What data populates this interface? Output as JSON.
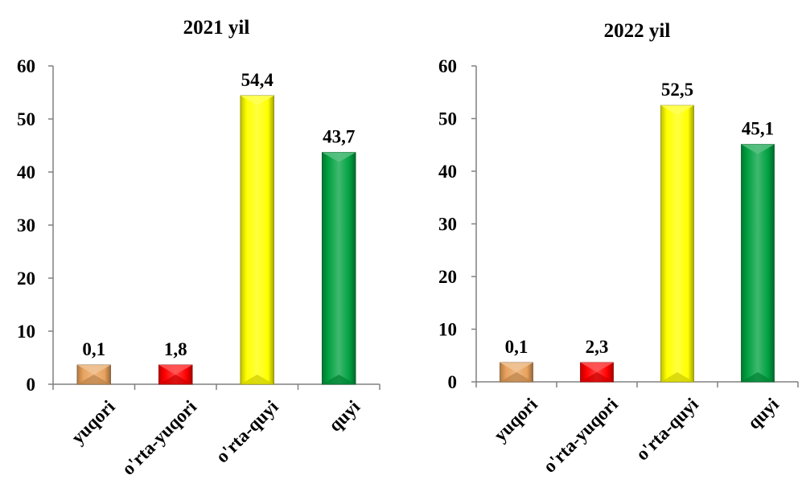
{
  "chart_data": [
    {
      "type": "bar",
      "title": "2021 yil",
      "xlabel": "",
      "ylabel": "",
      "ylim": [
        0,
        60
      ],
      "yticks": [
        "0",
        "10",
        "20",
        "30",
        "40",
        "50",
        "60"
      ],
      "categories": [
        "yuqori",
        "o'rta-yuqori",
        "o'rta-quyi",
        "quyi"
      ],
      "values": [
        0.1,
        1.8,
        54.4,
        43.7
      ],
      "value_labels": [
        "0,1",
        "1,8",
        "54,4",
        "43,7"
      ],
      "colors": [
        "#E8A25C",
        "#FF0000",
        "#FFFF00",
        "#00A040"
      ],
      "grid": false,
      "legend": "none"
    },
    {
      "type": "bar",
      "title": "2022 yil",
      "xlabel": "",
      "ylabel": "",
      "ylim": [
        0,
        60
      ],
      "yticks": [
        "0",
        "10",
        "20",
        "30",
        "40",
        "50",
        "60"
      ],
      "categories": [
        "yuqori",
        "o'rta-yuqori",
        "o'rta-quyi",
        "quyi"
      ],
      "values": [
        0.1,
        2.3,
        52.5,
        45.1
      ],
      "value_labels": [
        "0,1",
        "2,3",
        "52,5",
        "45,1"
      ],
      "colors": [
        "#E8A25C",
        "#FF0000",
        "#FFFF00",
        "#00A040"
      ],
      "grid": false,
      "legend": "none"
    }
  ]
}
